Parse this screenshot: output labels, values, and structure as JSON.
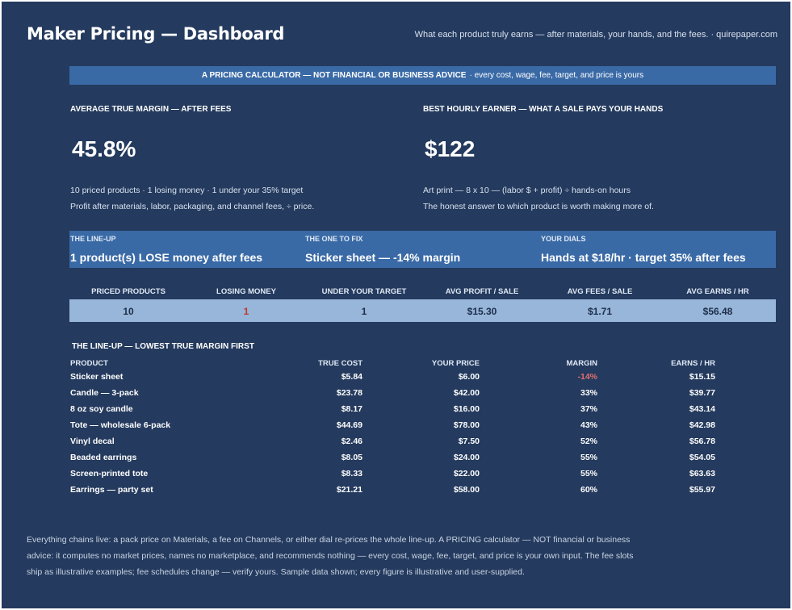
{
  "header": {
    "title": "Maker Pricing — Dashboard",
    "tagline": "What each product truly earns — after materials, your hands, and the fees.  ·  quirepaper.com"
  },
  "banner": {
    "main": "A PRICING CALCULATOR — NOT FINANCIAL OR BUSINESS ADVICE",
    "sub": "·  every cost, wage, fee, target, and price is yours"
  },
  "kpi_left": {
    "label": "AVERAGE TRUE MARGIN — AFTER FEES",
    "value": "45.8%",
    "note1": "10 priced products  ·  1 losing money  ·  1 under your 35% target",
    "note2": "Profit after materials, labor, packaging, and channel fees, ÷ price."
  },
  "kpi_right": {
    "label": "BEST HOURLY EARNER — WHAT A SALE PAYS YOUR HANDS",
    "value": "$122",
    "note1": "Art print — 8 x 10 — (labor $ + profit) ÷ hands-on hours",
    "note2": "The honest answer to which product is worth making more of."
  },
  "band": [
    {
      "label": "THE LINE-UP",
      "value": "1 product(s) LOSE money after fees"
    },
    {
      "label": "THE ONE TO FIX",
      "value": "Sticker sheet — -14% margin"
    },
    {
      "label": "YOUR DIALS",
      "value": "Hands at $18/hr · target 35% after fees"
    }
  ],
  "stats": {
    "headers": [
      "PRICED PRODUCTS",
      "LOSING MONEY",
      "UNDER YOUR TARGET",
      "AVG PROFIT / SALE",
      "AVG FEES / SALE",
      "AVG EARNS / HR"
    ],
    "values": [
      "10",
      "1",
      "1",
      "$15.30",
      "$1.71",
      "$56.48"
    ]
  },
  "lineup": {
    "title": "THE LINE-UP — LOWEST TRUE MARGIN FIRST",
    "columns": [
      "PRODUCT",
      "TRUE COST",
      "YOUR PRICE",
      "MARGIN",
      "EARNS / HR"
    ],
    "rows": [
      [
        "Sticker sheet",
        "$5.84",
        "$6.00",
        "-14%",
        "$15.15"
      ],
      [
        "Candle — 3-pack",
        "$23.78",
        "$42.00",
        "33%",
        "$39.77"
      ],
      [
        "8 oz soy candle",
        "$8.17",
        "$16.00",
        "37%",
        "$43.14"
      ],
      [
        "Tote — wholesale 6-pack",
        "$44.69",
        "$78.00",
        "43%",
        "$42.98"
      ],
      [
        "Vinyl decal",
        "$2.46",
        "$7.50",
        "52%",
        "$56.78"
      ],
      [
        "Beaded earrings",
        "$8.05",
        "$24.00",
        "55%",
        "$54.05"
      ],
      [
        "Screen-printed tote",
        "$8.33",
        "$22.00",
        "55%",
        "$63.63"
      ],
      [
        "Earrings — party set",
        "$21.21",
        "$58.00",
        "60%",
        "$55.97"
      ]
    ]
  },
  "footer": {
    "line1": "Everything chains live: a pack price on Materials, a fee on Channels, or either dial re-prices the whole line-up. A PRICING calculator — NOT financial or business",
    "line2": "advice: it computes no market prices, names no marketplace, and recommends nothing — every cost, wage, fee, target, and price is your own input. The fee slots",
    "line3": "ship as illustrative examples; fee schedules change — verify yours. Sample data shown; every figure is illustrative and user-supplied."
  },
  "colors": {
    "background": "#243a5e",
    "accent_band": "#3a6aa6",
    "stats_bar": "#97b6d9",
    "negative": "#e07070"
  }
}
